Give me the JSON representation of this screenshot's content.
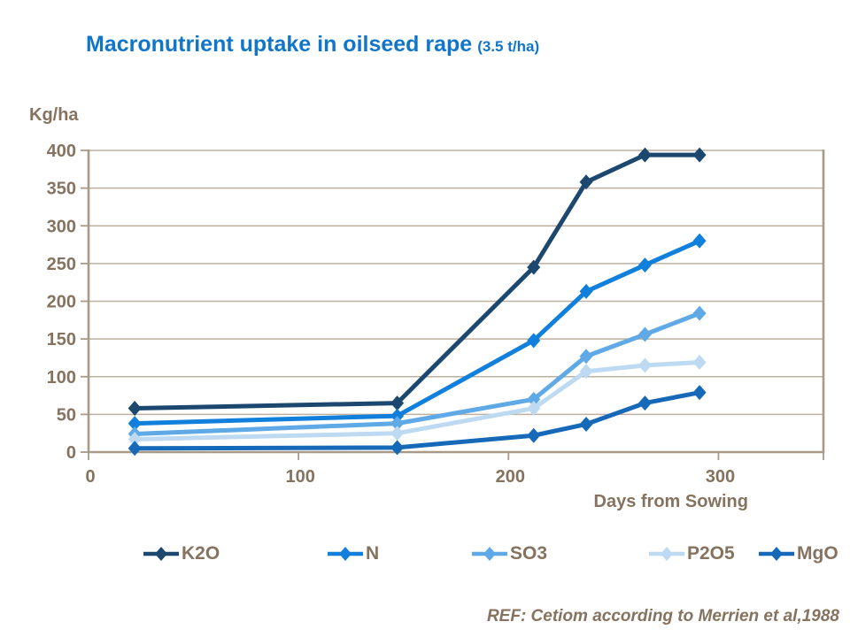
{
  "title": {
    "main": "Macronutrient uptake in oilseed rape",
    "suffix": "(3.5 t/ha)",
    "color": "#1176c9"
  },
  "footer": {
    "text": "REF: Cetiom according to Merrien et al,1988"
  },
  "chart_data": {
    "type": "line",
    "title": "Macronutrient uptake in oilseed rape (3.5 t/ha)",
    "xlabel": "Days from Sowing",
    "ylabel": "Kg/ha",
    "xlim": [
      0,
      350
    ],
    "ylim": [
      0,
      400
    ],
    "x_ticks": [
      0,
      100,
      200,
      300
    ],
    "y_ticks": [
      0,
      50,
      100,
      150,
      200,
      250,
      300,
      350,
      400
    ],
    "grid": true,
    "legend_position": "bottom",
    "x": [
      22,
      147,
      212,
      237,
      265,
      291
    ],
    "series": [
      {
        "name": "K2O",
        "color": "#1c4870",
        "values": [
          58,
          65,
          245,
          358,
          394,
          394
        ]
      },
      {
        "name": "N",
        "color": "#1180dc",
        "values": [
          38,
          48,
          148,
          213,
          248,
          280
        ]
      },
      {
        "name": "SO3",
        "color": "#5ea9e6",
        "values": [
          24,
          38,
          70,
          127,
          156,
          184
        ]
      },
      {
        "name": "P2O5",
        "color": "#bedaf3",
        "values": [
          17,
          25,
          58,
          107,
          115,
          119
        ]
      },
      {
        "name": "MgO",
        "color": "#1569b8",
        "values": [
          5,
          6,
          22,
          37,
          65,
          79
        ]
      }
    ],
    "text_color": "#85735f",
    "axis_color": "#a99a87",
    "grid_color": "#bfb0a0"
  }
}
